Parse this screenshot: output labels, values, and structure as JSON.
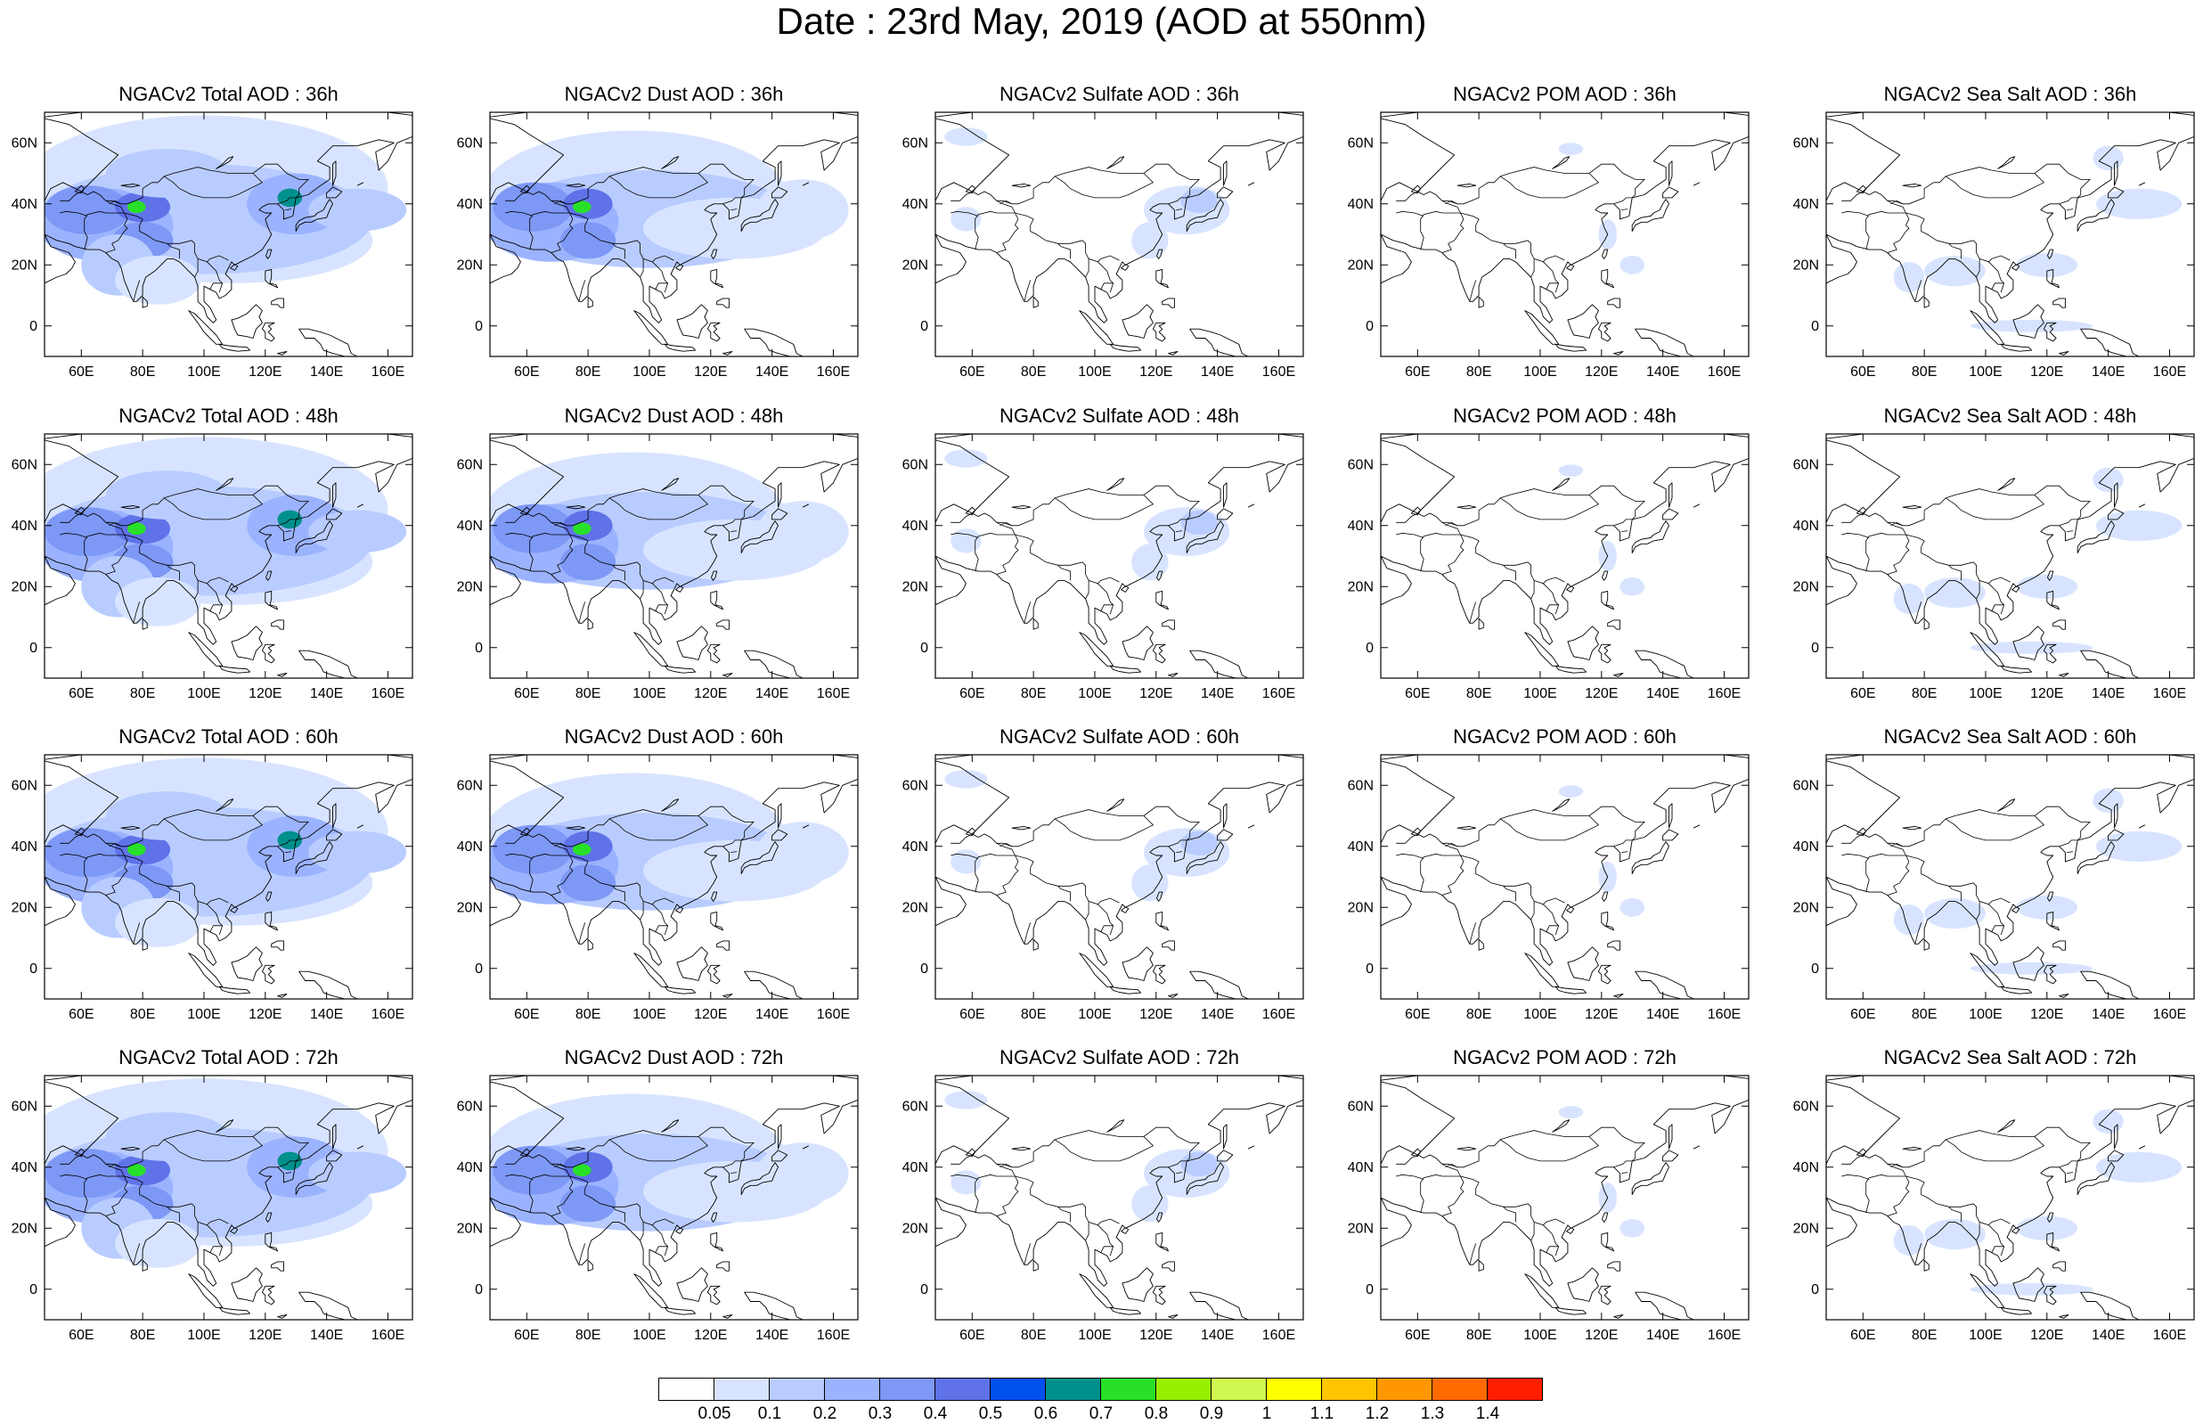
{
  "title": "Date : 23rd May, 2019 (AOD at 550nm)",
  "axes": {
    "x_ticks": [
      "60E",
      "80E",
      "100E",
      "120E",
      "140E",
      "160E"
    ],
    "x_values": [
      60,
      80,
      100,
      120,
      140,
      160
    ],
    "y_ticks": [
      "60N",
      "40N",
      "20N",
      "0"
    ],
    "y_values": [
      60,
      40,
      20,
      0
    ],
    "lon_range": [
      48,
      168
    ],
    "lat_range": [
      -10,
      70
    ]
  },
  "panels": [
    {
      "title": "NGACv2 Total AOD : 36h",
      "species": "total"
    },
    {
      "title": "NGACv2 Dust AOD : 36h",
      "species": "dust"
    },
    {
      "title": "NGACv2 Sulfate AOD : 36h",
      "species": "sulfate"
    },
    {
      "title": "NGACv2 POM AOD : 36h",
      "species": "pom"
    },
    {
      "title": "NGACv2 Sea Salt AOD : 36h",
      "species": "seasalt"
    },
    {
      "title": "NGACv2 Total AOD : 48h",
      "species": "total"
    },
    {
      "title": "NGACv2 Dust AOD : 48h",
      "species": "dust"
    },
    {
      "title": "NGACv2 Sulfate AOD : 48h",
      "species": "sulfate"
    },
    {
      "title": "NGACv2 POM AOD : 48h",
      "species": "pom"
    },
    {
      "title": "NGACv2 Sea Salt AOD : 48h",
      "species": "seasalt"
    },
    {
      "title": "NGACv2 Total AOD : 60h",
      "species": "total"
    },
    {
      "title": "NGACv2 Dust AOD : 60h",
      "species": "dust"
    },
    {
      "title": "NGACv2 Sulfate AOD : 60h",
      "species": "sulfate"
    },
    {
      "title": "NGACv2 POM AOD : 60h",
      "species": "pom"
    },
    {
      "title": "NGACv2 Sea Salt AOD : 60h",
      "species": "seasalt"
    },
    {
      "title": "NGACv2 Total AOD : 72h",
      "species": "total"
    },
    {
      "title": "NGACv2 Dust AOD : 72h",
      "species": "dust"
    },
    {
      "title": "NGACv2 Sulfate AOD : 72h",
      "species": "sulfate"
    },
    {
      "title": "NGACv2 POM AOD : 72h",
      "species": "pom"
    },
    {
      "title": "NGACv2 Sea Salt  AOD : 72h",
      "species": "seasalt"
    }
  ],
  "colorbar": {
    "labels": [
      "0.05",
      "0.1",
      "0.2",
      "0.3",
      "0.4",
      "0.5",
      "0.6",
      "0.7",
      "0.8",
      "0.9",
      "1",
      "1.1",
      "1.2",
      "1.3",
      "1.4"
    ],
    "colors": [
      "#ffffff",
      "#d8e4ff",
      "#b9ccff",
      "#9bb3ff",
      "#7d98f5",
      "#5f72e8",
      "#0050f0",
      "#00908c",
      "#28e028",
      "#98f000",
      "#d0f850",
      "#ffff00",
      "#ffc400",
      "#ff9800",
      "#ff6a00",
      "#ff1e00"
    ]
  }
}
